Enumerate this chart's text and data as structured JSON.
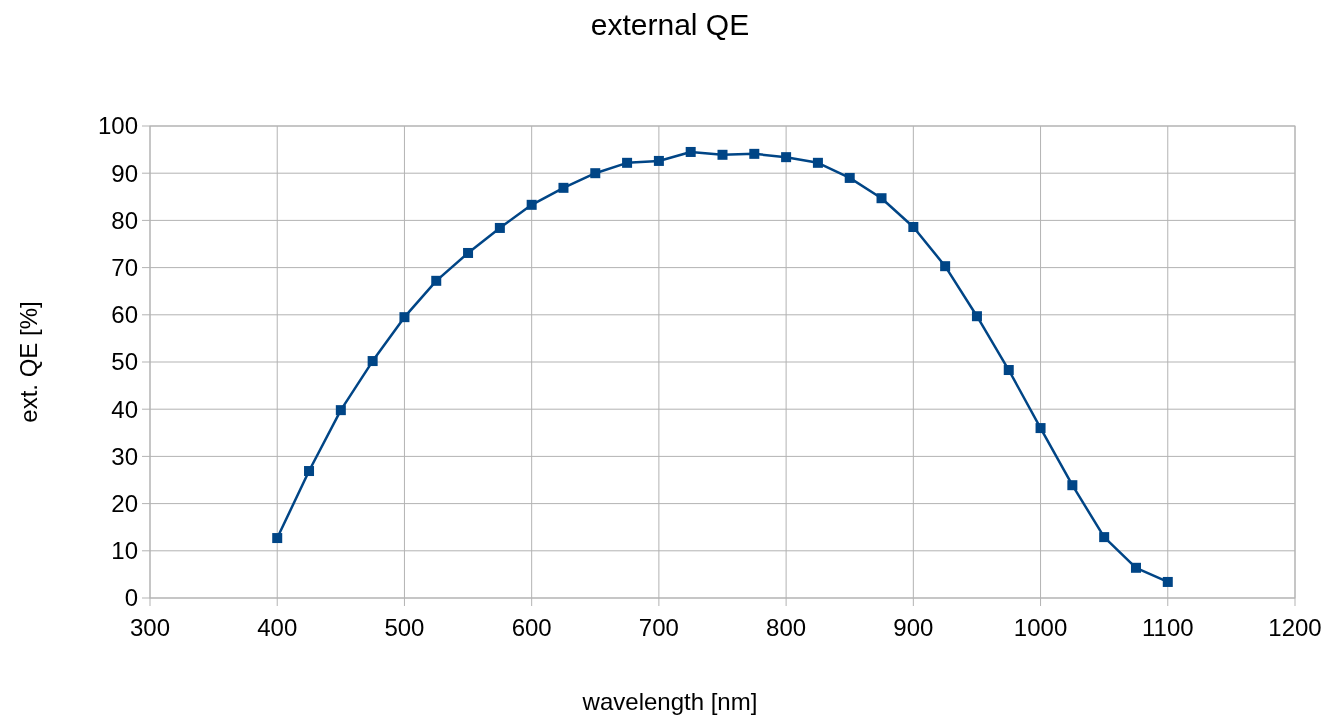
{
  "chart_data": {
    "type": "line",
    "title": "external QE",
    "xlabel": "wavelength  [nm]",
    "ylabel": "ext. QE [%]",
    "x": [
      400,
      425,
      450,
      475,
      500,
      525,
      550,
      575,
      600,
      625,
      650,
      675,
      700,
      725,
      750,
      775,
      800,
      825,
      850,
      875,
      900,
      925,
      950,
      975,
      1000,
      1025,
      1050,
      1075,
      1100
    ],
    "series": [
      {
        "color": "#004586",
        "values": [
          12.7,
          26.9,
          39.8,
          50.2,
          59.5,
          67.2,
          73.1,
          78.4,
          83.3,
          86.9,
          90.0,
          92.2,
          92.6,
          94.5,
          93.9,
          94.1,
          93.4,
          92.2,
          89.0,
          84.7,
          78.6,
          70.3,
          59.7,
          48.3,
          36.0,
          23.9,
          12.9,
          6.4,
          3.4
        ]
      }
    ],
    "xlim": [
      300,
      1200
    ],
    "xticks": [
      300,
      400,
      500,
      600,
      700,
      800,
      900,
      1000,
      1100,
      1200
    ],
    "ylim": [
      0,
      100
    ],
    "yticks": [
      0,
      10,
      20,
      30,
      40,
      50,
      60,
      70,
      80,
      90,
      100
    ],
    "grid": true,
    "marker": "square",
    "line_style": "solid"
  }
}
